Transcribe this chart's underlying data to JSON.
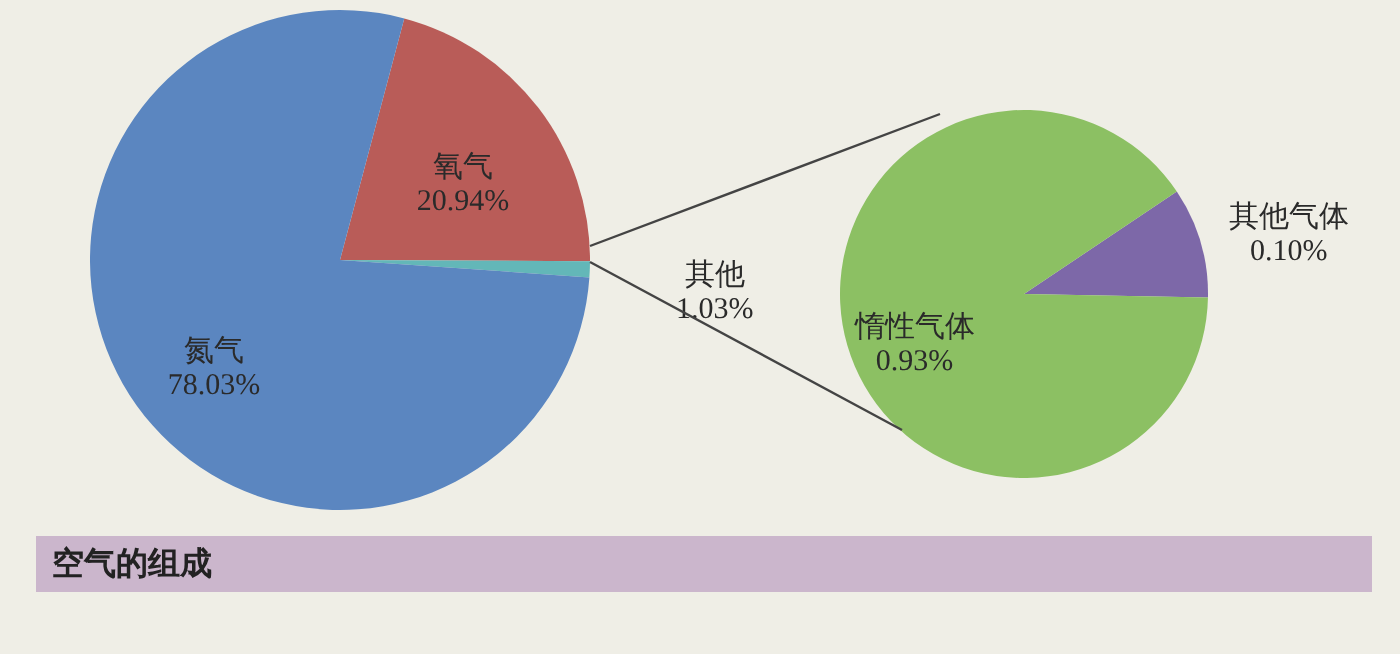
{
  "chart_data": [
    {
      "type": "pie",
      "title": "空气的组成",
      "categories": [
        "氧气",
        "其他",
        "氮气"
      ],
      "values": [
        20.94,
        1.03,
        78.03
      ],
      "colors": [
        "#b95c58",
        "#63b7b8",
        "#5b86c0"
      ],
      "value_labels": [
        "20.94%",
        "1.03%",
        "78.03%"
      ]
    },
    {
      "type": "pie",
      "categories": [
        "其他气体",
        "惰性气体"
      ],
      "values": [
        0.1,
        0.93
      ],
      "colors": [
        "#7d68a8",
        "#8cc063"
      ],
      "value_labels": [
        "0.10%",
        "0.93%"
      ]
    }
  ]
}
